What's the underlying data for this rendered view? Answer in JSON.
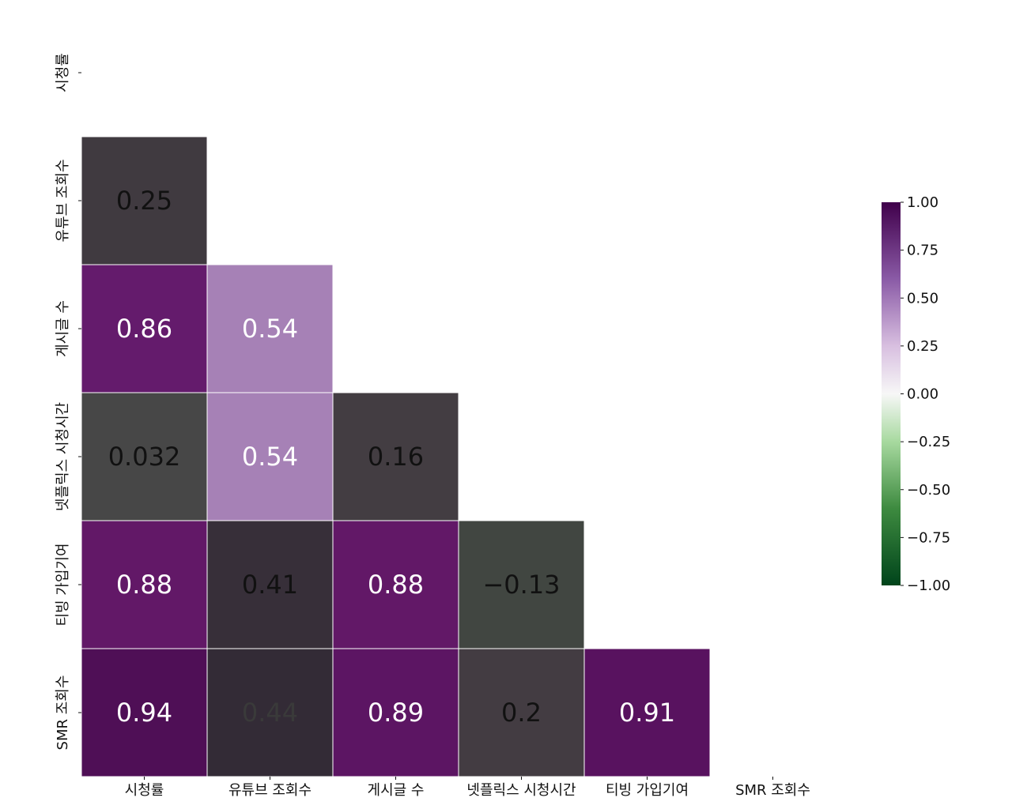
{
  "chart_data": {
    "type": "heatmap",
    "title": "",
    "xlabel": "",
    "ylabel": "",
    "mask": "upper-triangle-including-diagonal",
    "x_labels": [
      "시청률",
      "유튜브 조회수",
      "게시글 수",
      "넷플릭스 시청시간",
      "티빙 가입기여",
      "SMR 조회수"
    ],
    "y_labels": [
      "시청률",
      "유튜브 조회수",
      "게시글 수",
      "넷플릭스 시청시간",
      "티빙 가입기여",
      "SMR 조회수"
    ],
    "cells": [
      {
        "row": 1,
        "col": 0,
        "value": 0.25,
        "label": "0.25",
        "fill": "#403a40",
        "text_color": "#111111"
      },
      {
        "row": 2,
        "col": 0,
        "value": 0.86,
        "label": "0.86",
        "fill": "#641b6c",
        "text_color": "#ffffff"
      },
      {
        "row": 2,
        "col": 1,
        "value": 0.54,
        "label": "0.54",
        "fill": "#a681b6",
        "text_color": "#ffffff"
      },
      {
        "row": 3,
        "col": 0,
        "value": 0.032,
        "label": "0.032",
        "fill": "#474747",
        "text_color": "#111111"
      },
      {
        "row": 3,
        "col": 1,
        "value": 0.54,
        "label": "0.54",
        "fill": "#a681b6",
        "text_color": "#ffffff"
      },
      {
        "row": 3,
        "col": 2,
        "value": 0.16,
        "label": "0.16",
        "fill": "#433d42",
        "text_color": "#111111"
      },
      {
        "row": 4,
        "col": 0,
        "value": 0.88,
        "label": "0.88",
        "fill": "#621867",
        "text_color": "#ffffff"
      },
      {
        "row": 4,
        "col": 1,
        "value": 0.41,
        "label": "0.41",
        "fill": "#372f39",
        "text_color": "#111111"
      },
      {
        "row": 4,
        "col": 2,
        "value": 0.88,
        "label": "0.88",
        "fill": "#621867",
        "text_color": "#ffffff"
      },
      {
        "row": 4,
        "col": 3,
        "value": -0.13,
        "label": "−0.13",
        "fill": "#414641",
        "text_color": "#111111"
      },
      {
        "row": 5,
        "col": 0,
        "value": 0.94,
        "label": "0.94",
        "fill": "#4f0f56",
        "text_color": "#ffffff"
      },
      {
        "row": 5,
        "col": 1,
        "value": 0.44,
        "label": "0.44",
        "fill": "#332b36",
        "text_color": "#3a3a3a"
      },
      {
        "row": 5,
        "col": 2,
        "value": 0.89,
        "label": "0.89",
        "fill": "#5c1563",
        "text_color": "#ffffff"
      },
      {
        "row": 5,
        "col": 3,
        "value": 0.2,
        "label": "0.2",
        "fill": "#433c42",
        "text_color": "#111111"
      },
      {
        "row": 5,
        "col": 4,
        "value": 0.91,
        "label": "0.91",
        "fill": "#58125f",
        "text_color": "#ffffff"
      }
    ],
    "colorbar": {
      "vmin": -1.0,
      "vmax": 1.0,
      "ticks": [
        1.0,
        0.75,
        0.5,
        0.25,
        0.0,
        -0.25,
        -0.5,
        -0.75,
        -1.0
      ],
      "tick_labels": [
        "1.00",
        "0.75",
        "0.50",
        "0.25",
        "0.00",
        "−0.25",
        "−0.50",
        "−0.75",
        "−1.00"
      ],
      "colormap": "PRGn",
      "colormap_stops": [
        {
          "value": -1.0,
          "color": "#00441b"
        },
        {
          "value": -0.6,
          "color": "#3d8a3f"
        },
        {
          "value": -0.25,
          "color": "#a7d99f"
        },
        {
          "value": 0.0,
          "color": "#f7f7f7"
        },
        {
          "value": 0.25,
          "color": "#d8bfe0"
        },
        {
          "value": 0.6,
          "color": "#8a5aa6"
        },
        {
          "value": 1.0,
          "color": "#40004b"
        }
      ]
    }
  }
}
